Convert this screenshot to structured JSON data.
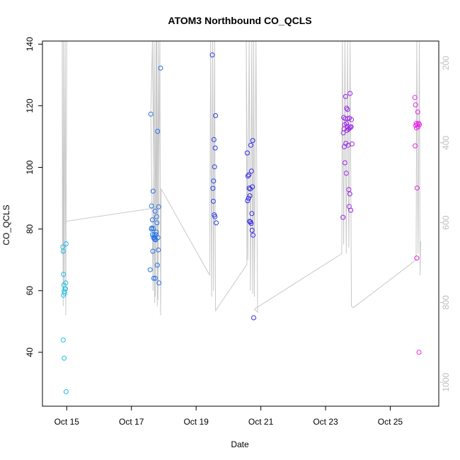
{
  "chart_data": {
    "type": "scatter",
    "title": "ATOM3 Northbound CO_QCLS",
    "xlabel": "Date",
    "ylabel": "CO_QCLS",
    "xlim": [
      14.15,
      26.4
    ],
    "ylim": [
      22.5,
      141.0
    ],
    "x_ticks": [
      {
        "value": 14.9,
        "label": "Oct 15"
      },
      {
        "value": 16.9,
        "label": "Oct 17"
      },
      {
        "value": 18.9,
        "label": "Oct 19"
      },
      {
        "value": 20.9,
        "label": "Oct 21"
      },
      {
        "value": 22.9,
        "label": "Oct 23"
      },
      {
        "value": 24.9,
        "label": "Oct 25"
      }
    ],
    "y_ticks": [
      {
        "value": 40,
        "label": "40"
      },
      {
        "value": 60,
        "label": "60"
      },
      {
        "value": 80,
        "label": "80"
      },
      {
        "value": 100,
        "label": "100"
      },
      {
        "value": 120,
        "label": "120"
      },
      {
        "value": 140,
        "label": "140"
      }
    ],
    "right_axis": {
      "label": "",
      "color": "#bdbdbd",
      "ylim": [
        1060,
        145
      ],
      "ticks": [
        {
          "value": 200,
          "label": "200"
        },
        {
          "value": 400,
          "label": "400"
        },
        {
          "value": 600,
          "label": "600"
        },
        {
          "value": 800,
          "label": "800"
        },
        {
          "value": 1000,
          "label": "1000"
        }
      ]
    },
    "colors": {
      "start": "#22bfe6",
      "mid": "#2a2ae6",
      "end": "#e626e6",
      "line": "#c8c8c8"
    },
    "series": [
      {
        "name": "CO_QCLS",
        "x": [
          14.78,
          14.79,
          14.8,
          14.81,
          14.82,
          14.8,
          14.79,
          14.84,
          14.86,
          14.87,
          14.88,
          14.82,
          14.85,
          14.88,
          17.48,
          17.5,
          17.52,
          17.53,
          17.55,
          17.56,
          17.57,
          17.58,
          17.59,
          17.6,
          17.61,
          17.62,
          17.63,
          17.64,
          17.65,
          17.66,
          17.67,
          17.68,
          17.69,
          17.7,
          17.72,
          17.73,
          17.74,
          17.75,
          17.52,
          17.55,
          17.58,
          17.62,
          17.71,
          17.8,
          19.4,
          19.42,
          19.43,
          19.44,
          19.45,
          19.46,
          19.47,
          19.48,
          19.49,
          19.5,
          19.52,
          20.48,
          20.49,
          20.5,
          20.52,
          20.53,
          20.54,
          20.55,
          20.56,
          20.57,
          20.58,
          20.59,
          20.6,
          20.61,
          20.62,
          20.63,
          20.64,
          20.65,
          20.66,
          20.68,
          23.44,
          23.45,
          23.46,
          23.47,
          23.48,
          23.49,
          23.5,
          23.51,
          23.52,
          23.53,
          23.54,
          23.55,
          23.56,
          23.57,
          23.58,
          23.59,
          23.6,
          23.61,
          23.62,
          23.63,
          23.64,
          23.65,
          23.66,
          23.67,
          23.68,
          23.69,
          23.7,
          23.72,
          23.55,
          23.64,
          25.66,
          25.67,
          25.68,
          25.69,
          25.7,
          25.71,
          25.72,
          25.73,
          25.74,
          25.75,
          25.76,
          25.78,
          25.79,
          25.8
        ],
        "y": [
          74.2,
          72.8,
          65.3,
          61.8,
          59.8,
          58.5,
          44.0,
          59.2,
          60.6,
          62.5,
          75.2,
          38.1,
          60.6,
          27.2,
          66.8,
          117.3,
          87.5,
          80.3,
          83.0,
          72.8,
          92.3,
          80.2,
          64.0,
          78.0,
          77.2,
          76.8,
          85.8,
          64.0,
          76.5,
          78.2,
          79.0,
          84.0,
          82.0,
          68.3,
          77.2,
          73.2,
          87.2,
          62.5,
          80.0,
          78.2,
          77.2,
          76.7,
          111.7,
          132.2,
          136.5,
          93.2,
          89.0,
          95.6,
          109.0,
          84.6,
          100.2,
          84.0,
          106.3,
          116.8,
          82.0,
          104.7,
          89.2,
          97.2,
          90.0,
          97.6,
          93.3,
          82.5,
          90.8,
          93.0,
          82.3,
          107.2,
          81.8,
          98.8,
          85.0,
          79.6,
          93.7,
          108.7,
          78.0,
          51.2,
          83.8,
          111.2,
          116.2,
          112.5,
          106.7,
          113.8,
          101.5,
          115.8,
          123.0,
          107.8,
          98.1,
          119.2,
          112.0,
          113.3,
          118.8,
          115.8,
          107.2,
          112.4,
          92.8,
          87.3,
          116.0,
          91.4,
          124.0,
          113.0,
          86.1,
          113.2,
          115.5,
          107.6,
          114.2,
          112.7,
          122.7,
          107.0,
          120.3,
          113.6,
          114.3,
          112.8,
          70.6,
          93.3,
          114.0,
          118.0,
          113.2,
          114.3,
          40.0,
          113.9
        ]
      }
    ]
  }
}
